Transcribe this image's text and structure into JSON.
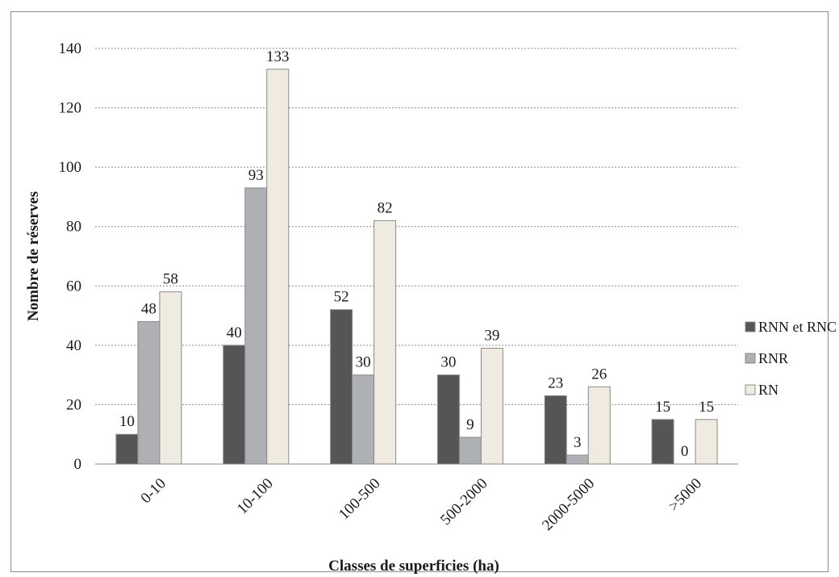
{
  "chart_data": {
    "type": "bar",
    "title": "",
    "xlabel": "Classes de superficies (ha)",
    "ylabel": "Nombre de réserves",
    "categories": [
      "0-10",
      "10-100",
      "100-500",
      "500-2000",
      "2000-5000",
      ">5000"
    ],
    "series": [
      {
        "name": "RNN et RNC",
        "values": [
          10,
          40,
          52,
          30,
          23,
          15
        ],
        "color": "#555555"
      },
      {
        "name": "RNR",
        "values": [
          48,
          93,
          30,
          9,
          3,
          0
        ],
        "color": "#aeb0b3"
      },
      {
        "name": "RN",
        "values": [
          58,
          133,
          82,
          39,
          26,
          15
        ],
        "color": "#efebe1"
      }
    ],
    "ylim": [
      0,
      140
    ],
    "yticks": [
      0,
      20,
      40,
      60,
      80,
      100,
      120,
      140
    ],
    "grid": true,
    "legend_position": "right"
  }
}
